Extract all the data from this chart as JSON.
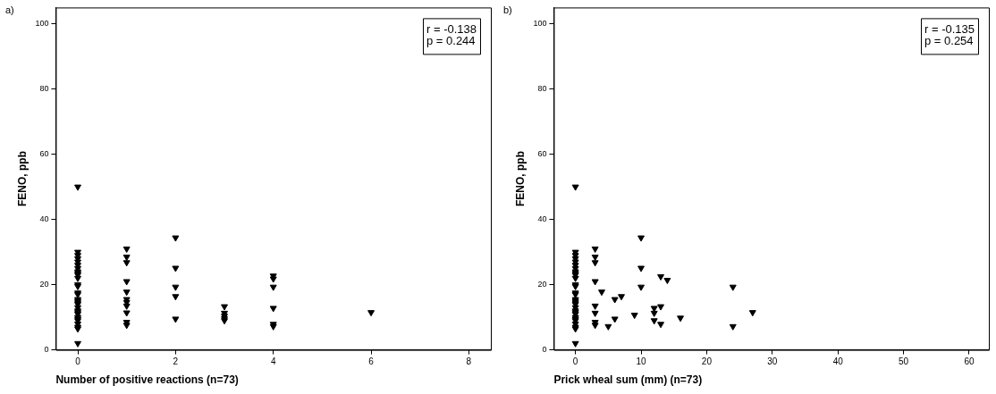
{
  "chart_data": [
    {
      "type": "scatter",
      "xlabel": "Number of positive reactions (n=73)",
      "ylabel": "FENO, ppb",
      "annotations": [
        "a)",
        "r = -0.138",
        "p = 0.244"
      ],
      "marker": "triangle",
      "grid": false,
      "legend": false,
      "xlim": [
        -0.45,
        8.45
      ],
      "xticks": [
        0,
        2,
        4,
        6,
        8
      ],
      "ylim": [
        0,
        105
      ],
      "yticks": [
        0,
        20,
        40,
        60,
        80,
        100
      ],
      "series": [
        {
          "color": "#000000",
          "x": [
            0,
            0,
            0,
            0,
            0,
            0,
            0,
            0,
            0,
            0,
            0,
            0,
            0,
            0,
            0,
            0,
            0,
            0,
            0,
            0,
            0,
            0,
            0,
            0,
            0,
            0,
            0,
            0,
            0,
            0,
            1,
            1,
            1,
            1,
            1,
            1,
            1,
            1,
            1,
            1,
            1,
            2,
            2,
            2,
            2,
            2,
            3,
            3,
            3,
            3,
            3,
            4,
            4,
            4,
            4,
            4,
            4,
            6
          ],
          "values": [
            50,
            2,
            30,
            29,
            28,
            27,
            26,
            25,
            24,
            23.5,
            23,
            22,
            20,
            19.5,
            17.5,
            17,
            15.5,
            15,
            14.5,
            14,
            13,
            12,
            11.5,
            11,
            10,
            9.5,
            9,
            8,
            7,
            6.5,
            31,
            28.5,
            26.8,
            21,
            17.8,
            15.5,
            14.6,
            13.5,
            11.4,
            8.5,
            7.6,
            34.4,
            25.1,
            19.3,
            16.4,
            9.5,
            13.3,
            11.3,
            10.4,
            9.6,
            9,
            22.7,
            21.8,
            19.3,
            12.8,
            7.9,
            7.2,
            11.5
          ]
        }
      ]
    },
    {
      "type": "scatter",
      "xlabel": "Prick wheal sum (mm) (n=73)",
      "ylabel": "FENO, ppb",
      "annotations": [
        "b)",
        "r = -0.135",
        "p = 0.254"
      ],
      "marker": "triangle",
      "grid": false,
      "legend": false,
      "xlim": [
        -3.3,
        63
      ],
      "xticks": [
        0,
        10,
        20,
        30,
        40,
        50,
        60
      ],
      "ylim": [
        0,
        105
      ],
      "yticks": [
        0,
        20,
        40,
        60,
        80,
        100
      ],
      "series": [
        {
          "color": "#000000",
          "x": [
            0,
            0,
            0,
            0,
            0,
            0,
            0,
            0,
            0,
            0,
            0,
            0,
            0,
            0,
            0,
            0,
            0,
            0,
            0,
            0,
            0,
            0,
            0,
            0,
            0,
            0,
            0,
            0,
            0,
            0,
            3,
            3,
            3,
            3,
            3,
            3,
            3,
            3,
            4,
            5,
            6,
            6,
            7,
            9,
            10,
            10,
            10,
            12,
            12,
            12,
            13,
            13,
            13,
            14,
            16,
            24,
            24,
            27
          ],
          "values": [
            50,
            2,
            30,
            29,
            28,
            27,
            26,
            25,
            24,
            23.5,
            23,
            22,
            20,
            19.5,
            17.5,
            17,
            15.5,
            15,
            14.5,
            14,
            13,
            12,
            11.5,
            11,
            10,
            9.5,
            9,
            8,
            7,
            6.5,
            31,
            28.5,
            26.8,
            21,
            13.5,
            11.3,
            8.5,
            7.6,
            17.8,
            7.2,
            15.5,
            9.5,
            16.4,
            10.7,
            34.4,
            25.1,
            19.3,
            12.8,
            11.3,
            9,
            22.5,
            13.3,
            7.9,
            21.4,
            9.8,
            19.3,
            7.2,
            11.5
          ]
        }
      ]
    }
  ]
}
